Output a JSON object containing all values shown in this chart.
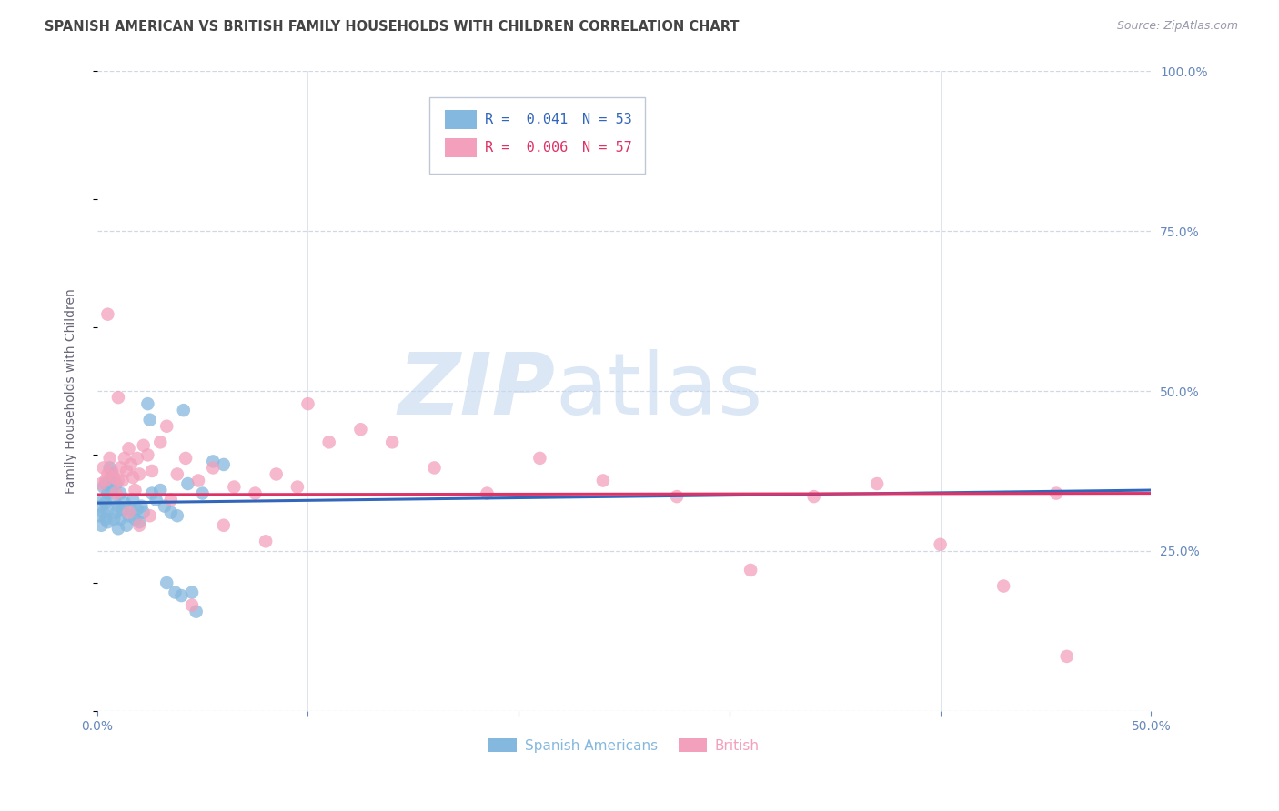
{
  "title": "SPANISH AMERICAN VS BRITISH FAMILY HOUSEHOLDS WITH CHILDREN CORRELATION CHART",
  "source": "Source: ZipAtlas.com",
  "ylabel": "Family Households with Children",
  "xlim": [
    0.0,
    0.5
  ],
  "ylim": [
    0.0,
    1.0
  ],
  "watermark_zip": "ZIP",
  "watermark_atlas": "atlas",
  "blue_color": "#85b8de",
  "pink_color": "#f2a0bb",
  "blue_line_color": "#3366bb",
  "pink_line_color": "#dd3366",
  "legend_blue_R": "R =  0.041",
  "legend_blue_N": "N = 53",
  "legend_pink_R": "R =  0.006",
  "legend_pink_N": "N = 57",
  "title_color": "#444444",
  "axis_label_color": "#6688bb",
  "grid_color": "#d0d8e8",
  "blue_scatter_x": [
    0.001,
    0.002,
    0.002,
    0.003,
    0.003,
    0.003,
    0.004,
    0.004,
    0.004,
    0.005,
    0.005,
    0.005,
    0.006,
    0.006,
    0.007,
    0.007,
    0.008,
    0.008,
    0.009,
    0.009,
    0.01,
    0.01,
    0.011,
    0.011,
    0.012,
    0.013,
    0.014,
    0.015,
    0.016,
    0.017,
    0.018,
    0.019,
    0.02,
    0.021,
    0.022,
    0.024,
    0.025,
    0.026,
    0.028,
    0.03,
    0.032,
    0.033,
    0.035,
    0.037,
    0.038,
    0.04,
    0.041,
    0.043,
    0.045,
    0.047,
    0.05,
    0.055,
    0.06
  ],
  "blue_scatter_y": [
    0.305,
    0.29,
    0.32,
    0.31,
    0.33,
    0.35,
    0.3,
    0.325,
    0.355,
    0.295,
    0.315,
    0.34,
    0.36,
    0.38,
    0.345,
    0.37,
    0.3,
    0.33,
    0.31,
    0.355,
    0.285,
    0.32,
    0.3,
    0.34,
    0.315,
    0.325,
    0.29,
    0.305,
    0.315,
    0.33,
    0.3,
    0.315,
    0.295,
    0.32,
    0.31,
    0.48,
    0.455,
    0.34,
    0.33,
    0.345,
    0.32,
    0.2,
    0.31,
    0.185,
    0.305,
    0.18,
    0.47,
    0.355,
    0.185,
    0.155,
    0.34,
    0.39,
    0.385
  ],
  "pink_scatter_x": [
    0.002,
    0.003,
    0.004,
    0.005,
    0.006,
    0.007,
    0.008,
    0.009,
    0.01,
    0.011,
    0.012,
    0.013,
    0.014,
    0.015,
    0.016,
    0.017,
    0.018,
    0.019,
    0.02,
    0.022,
    0.024,
    0.026,
    0.03,
    0.033,
    0.038,
    0.042,
    0.048,
    0.055,
    0.065,
    0.075,
    0.085,
    0.095,
    0.11,
    0.125,
    0.14,
    0.16,
    0.185,
    0.21,
    0.24,
    0.275,
    0.31,
    0.34,
    0.37,
    0.4,
    0.43,
    0.455,
    0.46,
    0.005,
    0.01,
    0.015,
    0.02,
    0.025,
    0.035,
    0.045,
    0.06,
    0.08,
    0.1
  ],
  "pink_scatter_y": [
    0.355,
    0.38,
    0.36,
    0.37,
    0.395,
    0.375,
    0.365,
    0.34,
    0.36,
    0.38,
    0.36,
    0.395,
    0.375,
    0.41,
    0.385,
    0.365,
    0.345,
    0.395,
    0.37,
    0.415,
    0.4,
    0.375,
    0.42,
    0.445,
    0.37,
    0.395,
    0.36,
    0.38,
    0.35,
    0.34,
    0.37,
    0.35,
    0.42,
    0.44,
    0.42,
    0.38,
    0.34,
    0.395,
    0.36,
    0.335,
    0.22,
    0.335,
    0.355,
    0.26,
    0.195,
    0.34,
    0.085,
    0.62,
    0.49,
    0.31,
    0.29,
    0.305,
    0.33,
    0.165,
    0.29,
    0.265,
    0.48
  ],
  "blue_trend_x": [
    0.0,
    0.5
  ],
  "blue_trend_y": [
    0.325,
    0.345
  ],
  "pink_trend_x": [
    0.0,
    0.5
  ],
  "pink_trend_y": [
    0.338,
    0.34
  ]
}
